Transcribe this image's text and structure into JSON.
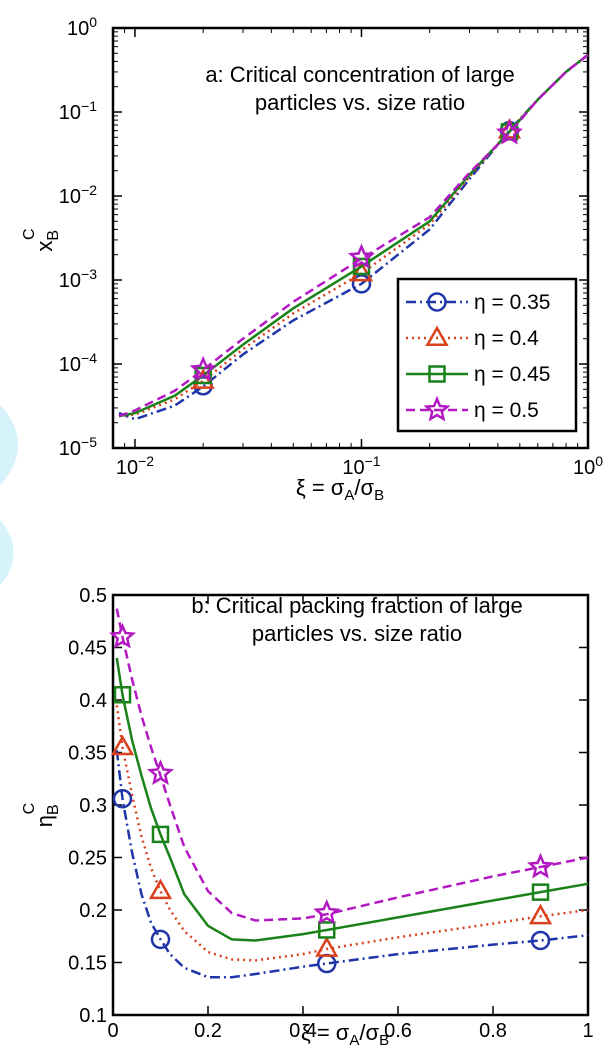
{
  "colors": {
    "eta035": "#1f35a8",
    "eta04": "#d9411e",
    "eta045": "#198219",
    "eta05": "#b319c2",
    "decor": "#d6f3fb"
  },
  "chart_data": [
    {
      "type": "line",
      "xscale": "log",
      "yscale": "log",
      "annotation": [
        "a: Critical concentration of large",
        "particles vs. size ratio"
      ],
      "xlabel": "ξ = σA/σB",
      "ylabel": "xBC",
      "xlim": [
        0.008,
        1
      ],
      "ylim": [
        1e-05,
        1
      ],
      "xticks": [
        {
          "value": 0.01,
          "base": "10",
          "exp": "−2"
        },
        {
          "value": 0.1,
          "base": "10",
          "exp": "−1"
        },
        {
          "value": 1,
          "base": "10",
          "exp": "0"
        }
      ],
      "yticks": [
        {
          "value": 1e-05,
          "base": "10",
          "exp": "−5"
        },
        {
          "value": 0.0001,
          "base": "10",
          "exp": "−4"
        },
        {
          "value": 0.001,
          "base": "10",
          "exp": "−3"
        },
        {
          "value": 0.01,
          "base": "10",
          "exp": "−2"
        },
        {
          "value": 0.1,
          "base": "10",
          "exp": "−1"
        },
        {
          "value": 1,
          "base": "10",
          "exp": "0"
        }
      ],
      "grid": false,
      "legend_position": "bottom-right",
      "series": [
        {
          "name": "η = 0.35",
          "key": "eta035",
          "marker": "circle",
          "dash": "10,4,2,4",
          "line": [
            [
              0.0085,
              2.6e-05
            ],
            [
              0.01,
              2.2e-05
            ],
            [
              0.015,
              3.2e-05
            ],
            [
              0.02,
              5.4e-05
            ],
            [
              0.03,
              0.00013
            ],
            [
              0.05,
              0.00033
            ],
            [
              0.1,
              0.0009
            ],
            [
              0.2,
              0.004
            ],
            [
              0.3,
              0.016
            ],
            [
              0.45,
              0.06
            ],
            [
              0.6,
              0.14
            ],
            [
              0.8,
              0.3
            ],
            [
              1.0,
              0.48
            ]
          ],
          "points": [
            [
              0.02,
              5.5e-05
            ],
            [
              0.1,
              0.0009
            ],
            [
              0.45,
              0.06
            ]
          ]
        },
        {
          "name": "η = 0.4",
          "key": "eta04",
          "marker": "triangle",
          "dash": "2,4",
          "line": [
            [
              0.0085,
              2.4e-05
            ],
            [
              0.01,
              2.5e-05
            ],
            [
              0.015,
              3.8e-05
            ],
            [
              0.02,
              6.3e-05
            ],
            [
              0.03,
              0.00015
            ],
            [
              0.05,
              0.0004
            ],
            [
              0.1,
              0.0012
            ],
            [
              0.2,
              0.0046
            ],
            [
              0.3,
              0.017
            ],
            [
              0.45,
              0.06
            ],
            [
              0.6,
              0.14
            ],
            [
              0.8,
              0.3
            ],
            [
              1.0,
              0.48
            ]
          ],
          "points": [
            [
              0.02,
              6.3e-05
            ],
            [
              0.1,
              0.0012
            ],
            [
              0.45,
              0.06
            ]
          ]
        },
        {
          "name": "η = 0.45",
          "key": "eta045",
          "marker": "square",
          "dash": "",
          "line": [
            [
              0.0085,
              2.4e-05
            ],
            [
              0.01,
              2.6e-05
            ],
            [
              0.015,
              4.2e-05
            ],
            [
              0.02,
              7.3e-05
            ],
            [
              0.03,
              0.00017
            ],
            [
              0.05,
              0.00046
            ],
            [
              0.1,
              0.00145
            ],
            [
              0.2,
              0.005
            ],
            [
              0.3,
              0.018
            ],
            [
              0.45,
              0.058
            ],
            [
              0.6,
              0.14
            ],
            [
              0.8,
              0.3
            ],
            [
              1.0,
              0.48
            ]
          ],
          "points": [
            [
              0.02,
              7.3e-05
            ],
            [
              0.1,
              0.00145
            ],
            [
              0.45,
              0.058
            ]
          ]
        },
        {
          "name": "η = 0.5",
          "key": "eta05",
          "marker": "star",
          "dash": "9,5",
          "line": [
            [
              0.0085,
              2.4e-05
            ],
            [
              0.01,
              2.8e-05
            ],
            [
              0.015,
              4.8e-05
            ],
            [
              0.02,
              8.5e-05
            ],
            [
              0.03,
              0.0002
            ],
            [
              0.05,
              0.00055
            ],
            [
              0.1,
              0.0018
            ],
            [
              0.2,
              0.0056
            ],
            [
              0.3,
              0.019
            ],
            [
              0.45,
              0.056
            ],
            [
              0.6,
              0.14
            ],
            [
              0.8,
              0.3
            ],
            [
              1.0,
              0.48
            ]
          ],
          "points": [
            [
              0.02,
              8.5e-05
            ],
            [
              0.1,
              0.00185
            ],
            [
              0.45,
              0.056
            ]
          ]
        }
      ]
    },
    {
      "type": "line",
      "annotation": [
        "b: Critical packing fraction of large",
        "particles vs. size ratio"
      ],
      "xlabel": "ξ = σA/σB",
      "ylabel": "ηBC",
      "xlim": [
        0,
        1
      ],
      "ylim": [
        0.1,
        0.5
      ],
      "xticks": [
        0,
        0.2,
        0.4,
        0.6,
        0.8,
        1
      ],
      "xtick_labels": [
        "0",
        "0.2",
        "0.4",
        "0.6",
        "0.8",
        "1"
      ],
      "yticks": [
        0.1,
        0.15,
        0.2,
        0.25,
        0.3,
        0.35,
        0.4,
        0.45,
        0.5
      ],
      "ytick_labels": [
        "0.1",
        "0.15",
        "0.2",
        "0.25",
        "0.3",
        "0.35",
        "0.4",
        "0.45",
        "0.5"
      ],
      "grid": false,
      "series": [
        {
          "key": "eta035",
          "marker": "circle",
          "dash": "10,4,2,4",
          "line": [
            [
              0.008,
              0.352
            ],
            [
              0.02,
              0.306
            ],
            [
              0.04,
              0.255
            ],
            [
              0.06,
              0.215
            ],
            [
              0.08,
              0.188
            ],
            [
              0.1,
              0.172
            ],
            [
              0.12,
              0.158
            ],
            [
              0.15,
              0.145
            ],
            [
              0.2,
              0.136
            ],
            [
              0.25,
              0.136
            ],
            [
              0.3,
              0.139
            ],
            [
              0.4,
              0.146
            ],
            [
              0.45,
              0.149
            ],
            [
              0.6,
              0.158
            ],
            [
              0.8,
              0.167
            ],
            [
              0.9,
              0.171
            ],
            [
              1.0,
              0.176
            ]
          ],
          "points": [
            [
              0.02,
              0.306
            ],
            [
              0.1,
              0.172
            ],
            [
              0.45,
              0.149
            ],
            [
              0.9,
              0.171
            ]
          ]
        },
        {
          "key": "eta04",
          "marker": "triangle",
          "dash": "2,4",
          "line": [
            [
              0.008,
              0.395
            ],
            [
              0.02,
              0.355
            ],
            [
              0.04,
              0.31
            ],
            [
              0.06,
              0.27
            ],
            [
              0.08,
              0.24
            ],
            [
              0.1,
              0.218
            ],
            [
              0.12,
              0.2
            ],
            [
              0.15,
              0.18
            ],
            [
              0.2,
              0.16
            ],
            [
              0.25,
              0.153
            ],
            [
              0.3,
              0.152
            ],
            [
              0.4,
              0.158
            ],
            [
              0.45,
              0.163
            ],
            [
              0.6,
              0.174
            ],
            [
              0.8,
              0.187
            ],
            [
              0.9,
              0.194
            ],
            [
              1.0,
              0.2
            ]
          ],
          "points": [
            [
              0.02,
              0.355
            ],
            [
              0.1,
              0.218
            ],
            [
              0.45,
              0.163
            ],
            [
              0.9,
              0.194
            ]
          ]
        },
        {
          "key": "eta045",
          "marker": "square",
          "dash": "",
          "line": [
            [
              0.008,
              0.44
            ],
            [
              0.02,
              0.405
            ],
            [
              0.04,
              0.362
            ],
            [
              0.06,
              0.328
            ],
            [
              0.08,
              0.297
            ],
            [
              0.1,
              0.272
            ],
            [
              0.12,
              0.25
            ],
            [
              0.15,
              0.215
            ],
            [
              0.2,
              0.185
            ],
            [
              0.25,
              0.172
            ],
            [
              0.3,
              0.171
            ],
            [
              0.4,
              0.177
            ],
            [
              0.45,
              0.181
            ],
            [
              0.6,
              0.193
            ],
            [
              0.8,
              0.209
            ],
            [
              0.9,
              0.217
            ],
            [
              1.0,
              0.225
            ]
          ],
          "points": [
            [
              0.02,
              0.405
            ],
            [
              0.1,
              0.272
            ],
            [
              0.45,
              0.181
            ],
            [
              0.9,
              0.217
            ]
          ]
        },
        {
          "key": "eta05",
          "marker": "star",
          "dash": "9,5",
          "line": [
            [
              0.008,
              0.487
            ],
            [
              0.02,
              0.46
            ],
            [
              0.04,
              0.42
            ],
            [
              0.06,
              0.385
            ],
            [
              0.08,
              0.355
            ],
            [
              0.1,
              0.328
            ],
            [
              0.12,
              0.3
            ],
            [
              0.15,
              0.26
            ],
            [
              0.2,
              0.218
            ],
            [
              0.25,
              0.197
            ],
            [
              0.3,
              0.19
            ],
            [
              0.4,
              0.192
            ],
            [
              0.45,
              0.196
            ],
            [
              0.6,
              0.212
            ],
            [
              0.8,
              0.232
            ],
            [
              0.9,
              0.241
            ],
            [
              1.0,
              0.25
            ]
          ],
          "points": [
            [
              0.02,
              0.46
            ],
            [
              0.1,
              0.33
            ],
            [
              0.45,
              0.197
            ],
            [
              0.9,
              0.241
            ]
          ]
        }
      ]
    }
  ]
}
